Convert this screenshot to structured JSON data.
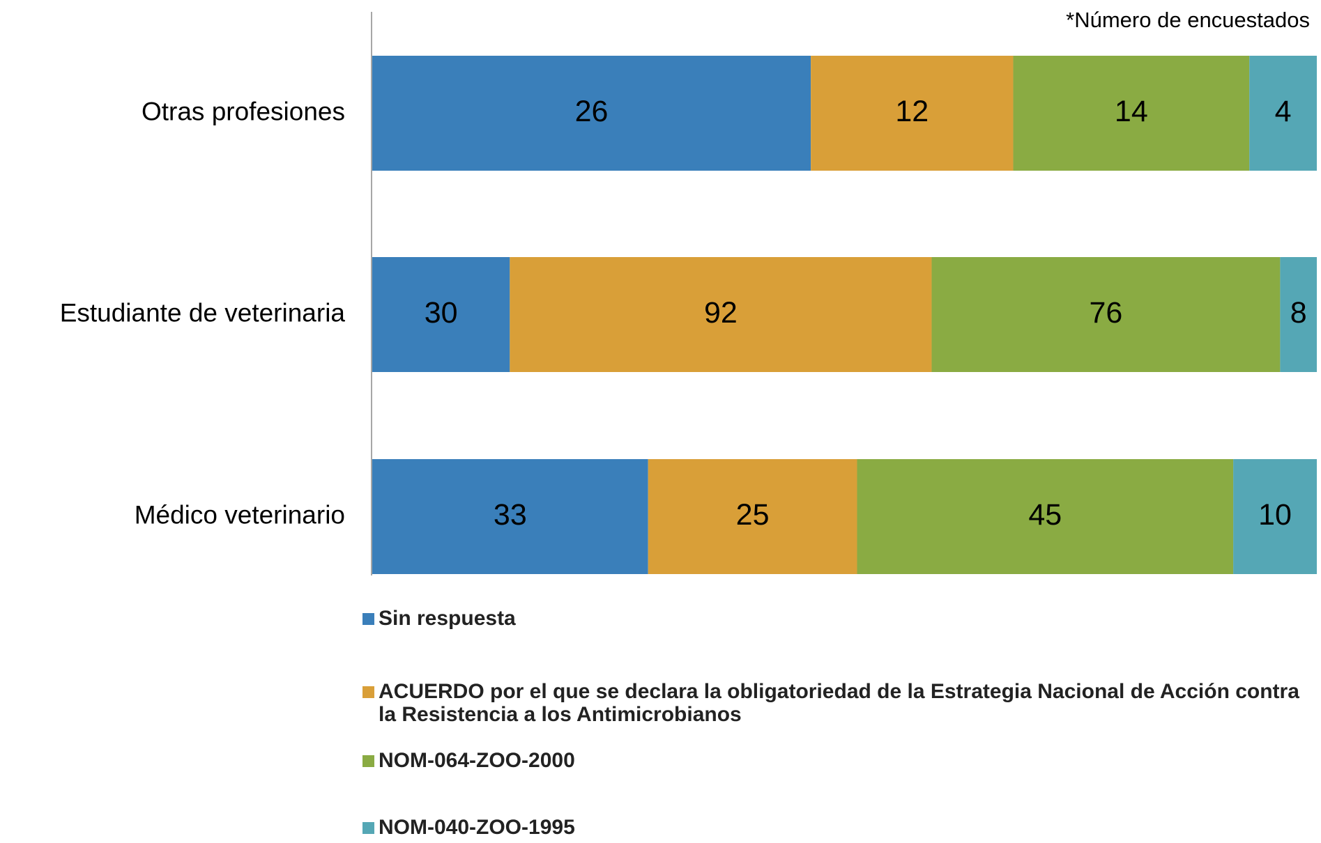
{
  "chart_data": {
    "type": "bar",
    "orientation": "horizontal",
    "stacked": "percent",
    "annotation": "*Número de encuestados",
    "categories": [
      "Otras profesiones",
      "Estudiante de veterinaria",
      "Médico veterinario"
    ],
    "series": [
      {
        "name": "Sin respuesta",
        "color": "#3a7fba",
        "values": [
          26,
          30,
          33
        ]
      },
      {
        "name": "ACUERDO por el que se declara la obligatoriedad de la Estrategia Nacional de Acción contra la Resistencia a los Antimicrobianos",
        "color": "#d99f38",
        "values": [
          12,
          92,
          25
        ]
      },
      {
        "name": "NOM-064-ZOO-2000",
        "color": "#8aab43",
        "values": [
          14,
          76,
          45
        ]
      },
      {
        "name": "NOM-040-ZOO-1995",
        "color": "#55a7b5",
        "values": [
          4,
          8,
          10
        ]
      }
    ],
    "legend": "bottom-left"
  }
}
